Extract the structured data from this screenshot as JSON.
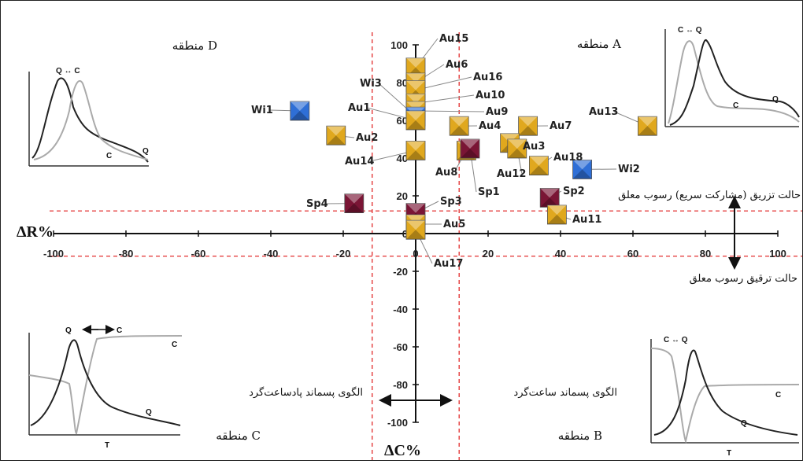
{
  "chart_data": {
    "type": "scatter",
    "xlabel": "ΔC%",
    "ylabel": "ΔR%",
    "xlim": [
      -100,
      100
    ],
    "ylim": [
      -100,
      100
    ],
    "x_ticks": [
      "-100",
      "-80",
      "-60",
      "-40",
      "-20",
      "0",
      "20",
      "40",
      "60",
      "80",
      "100"
    ],
    "y_ticks": [
      "100",
      "80",
      "60",
      "40",
      "20",
      "0",
      "-20",
      "-40",
      "-60",
      "-80",
      "-100"
    ],
    "grid": false,
    "thresholds": {
      "x": [
        -12,
        12
      ],
      "y": [
        12,
        -12
      ]
    },
    "series_colors": {
      "Au": "#e0a81e",
      "Wi": "#2f6fd6",
      "Sp": "#7a1535"
    },
    "points": [
      {
        "label": "Au15",
        "group": "Au",
        "x": 0,
        "y": 88
      },
      {
        "label": "Au6",
        "group": "Au",
        "x": 0,
        "y": 80
      },
      {
        "label": "Au16",
        "group": "Au",
        "x": 0,
        "y": 76
      },
      {
        "label": "Au10",
        "group": "Au",
        "x": 0,
        "y": 69
      },
      {
        "label": "Au9",
        "group": "Au",
        "x": 0,
        "y": 65
      },
      {
        "label": "Wi3",
        "group": "Wi",
        "x": 0,
        "y": 62
      },
      {
        "label": "Au1",
        "group": "Au",
        "x": 0,
        "y": 60
      },
      {
        "label": "Wi1",
        "group": "Wi",
        "x": -32,
        "y": 65
      },
      {
        "label": "Au2",
        "group": "Au",
        "x": -22,
        "y": 52
      },
      {
        "label": "Au14",
        "group": "Au",
        "x": 0,
        "y": 44
      },
      {
        "label": "Au4",
        "group": "Au",
        "x": 12,
        "y": 57
      },
      {
        "label": "Au7",
        "group": "Au",
        "x": 31,
        "y": 57
      },
      {
        "label": "Au13",
        "group": "Au",
        "x": 64,
        "y": 57
      },
      {
        "label": "Au3",
        "group": "Au",
        "x": 26,
        "y": 48
      },
      {
        "label": "Au12",
        "group": "Au",
        "x": 28,
        "y": 45
      },
      {
        "label": "Au8",
        "group": "Au",
        "x": 14,
        "y": 44
      },
      {
        "label": "Sp1",
        "group": "Sp",
        "x": 15,
        "y": 45
      },
      {
        "label": "Au18",
        "group": "Au",
        "x": 34,
        "y": 36
      },
      {
        "label": "Wi2",
        "group": "Wi",
        "x": 46,
        "y": 34
      },
      {
        "label": "Sp2",
        "group": "Sp",
        "x": 37,
        "y": 19
      },
      {
        "label": "Au11",
        "group": "Au",
        "x": 39,
        "y": 10
      },
      {
        "label": "Sp4",
        "group": "Sp",
        "x": -17,
        "y": 16
      },
      {
        "label": "Sp3",
        "group": "Sp",
        "x": 0,
        "y": 11
      },
      {
        "label": "Au5",
        "group": "Au",
        "x": 0,
        "y": 5
      },
      {
        "label": "Au17",
        "group": "Au",
        "x": 0,
        "y": 2
      }
    ],
    "zones": {
      "A": "منطقه A",
      "B": "منطقه B",
      "C": "منطقه C",
      "D": "منطقه D"
    },
    "annotations": {
      "injection": "حالت تزریق (مشارکت سریع) رسوب معلق",
      "dilution": "حالت ترقیق رسوب معلق",
      "clockwise": "الگوی پسماند ساعت‌گرد",
      "counterclockwise": "الگوی پسماند پادساعت‌گرد"
    },
    "insets": {
      "D": {
        "top_label": "Q ↔ C",
        "curve_labels": [
          "C",
          "Q"
        ]
      },
      "A": {
        "top_label": "C ↔ Q",
        "curve_labels": [
          "C",
          "Q"
        ]
      },
      "C": {
        "top_label_q": "Q",
        "top_label_c": "C",
        "curve_labels": [
          "C",
          "Q"
        ],
        "axis_label": "T"
      },
      "B": {
        "top_label": "C ↔ Q",
        "curve_labels": [
          "C",
          "Q"
        ],
        "axis_label": "T"
      }
    }
  }
}
